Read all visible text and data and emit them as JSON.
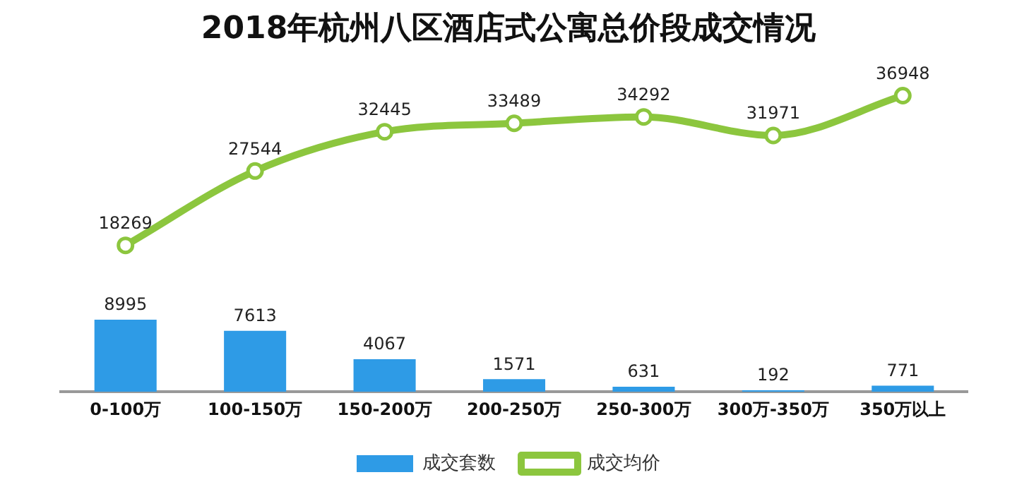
{
  "chart_data": {
    "type": "bar",
    "title": "2018年杭州八区酒店式公寓总价段成交情况",
    "categories": [
      "0-100万",
      "100-150万",
      "150-200万",
      "200-250万",
      "250-300万",
      "300万-350万",
      "350万以上"
    ],
    "series": [
      {
        "name": "成交套数",
        "color": "#2e9be6",
        "values": [
          8995,
          7613,
          4067,
          1571,
          631,
          192,
          771
        ]
      },
      {
        "name": "成交均价",
        "type": "line",
        "color": "#8cc63e",
        "values": [
          18269,
          27544,
          32445,
          33489,
          34292,
          31971,
          36948
        ]
      }
    ],
    "data_labels": true,
    "grid": false,
    "legend": "bottom",
    "tick_labels": "x",
    "marker": "circle",
    "line_style": "solid"
  }
}
